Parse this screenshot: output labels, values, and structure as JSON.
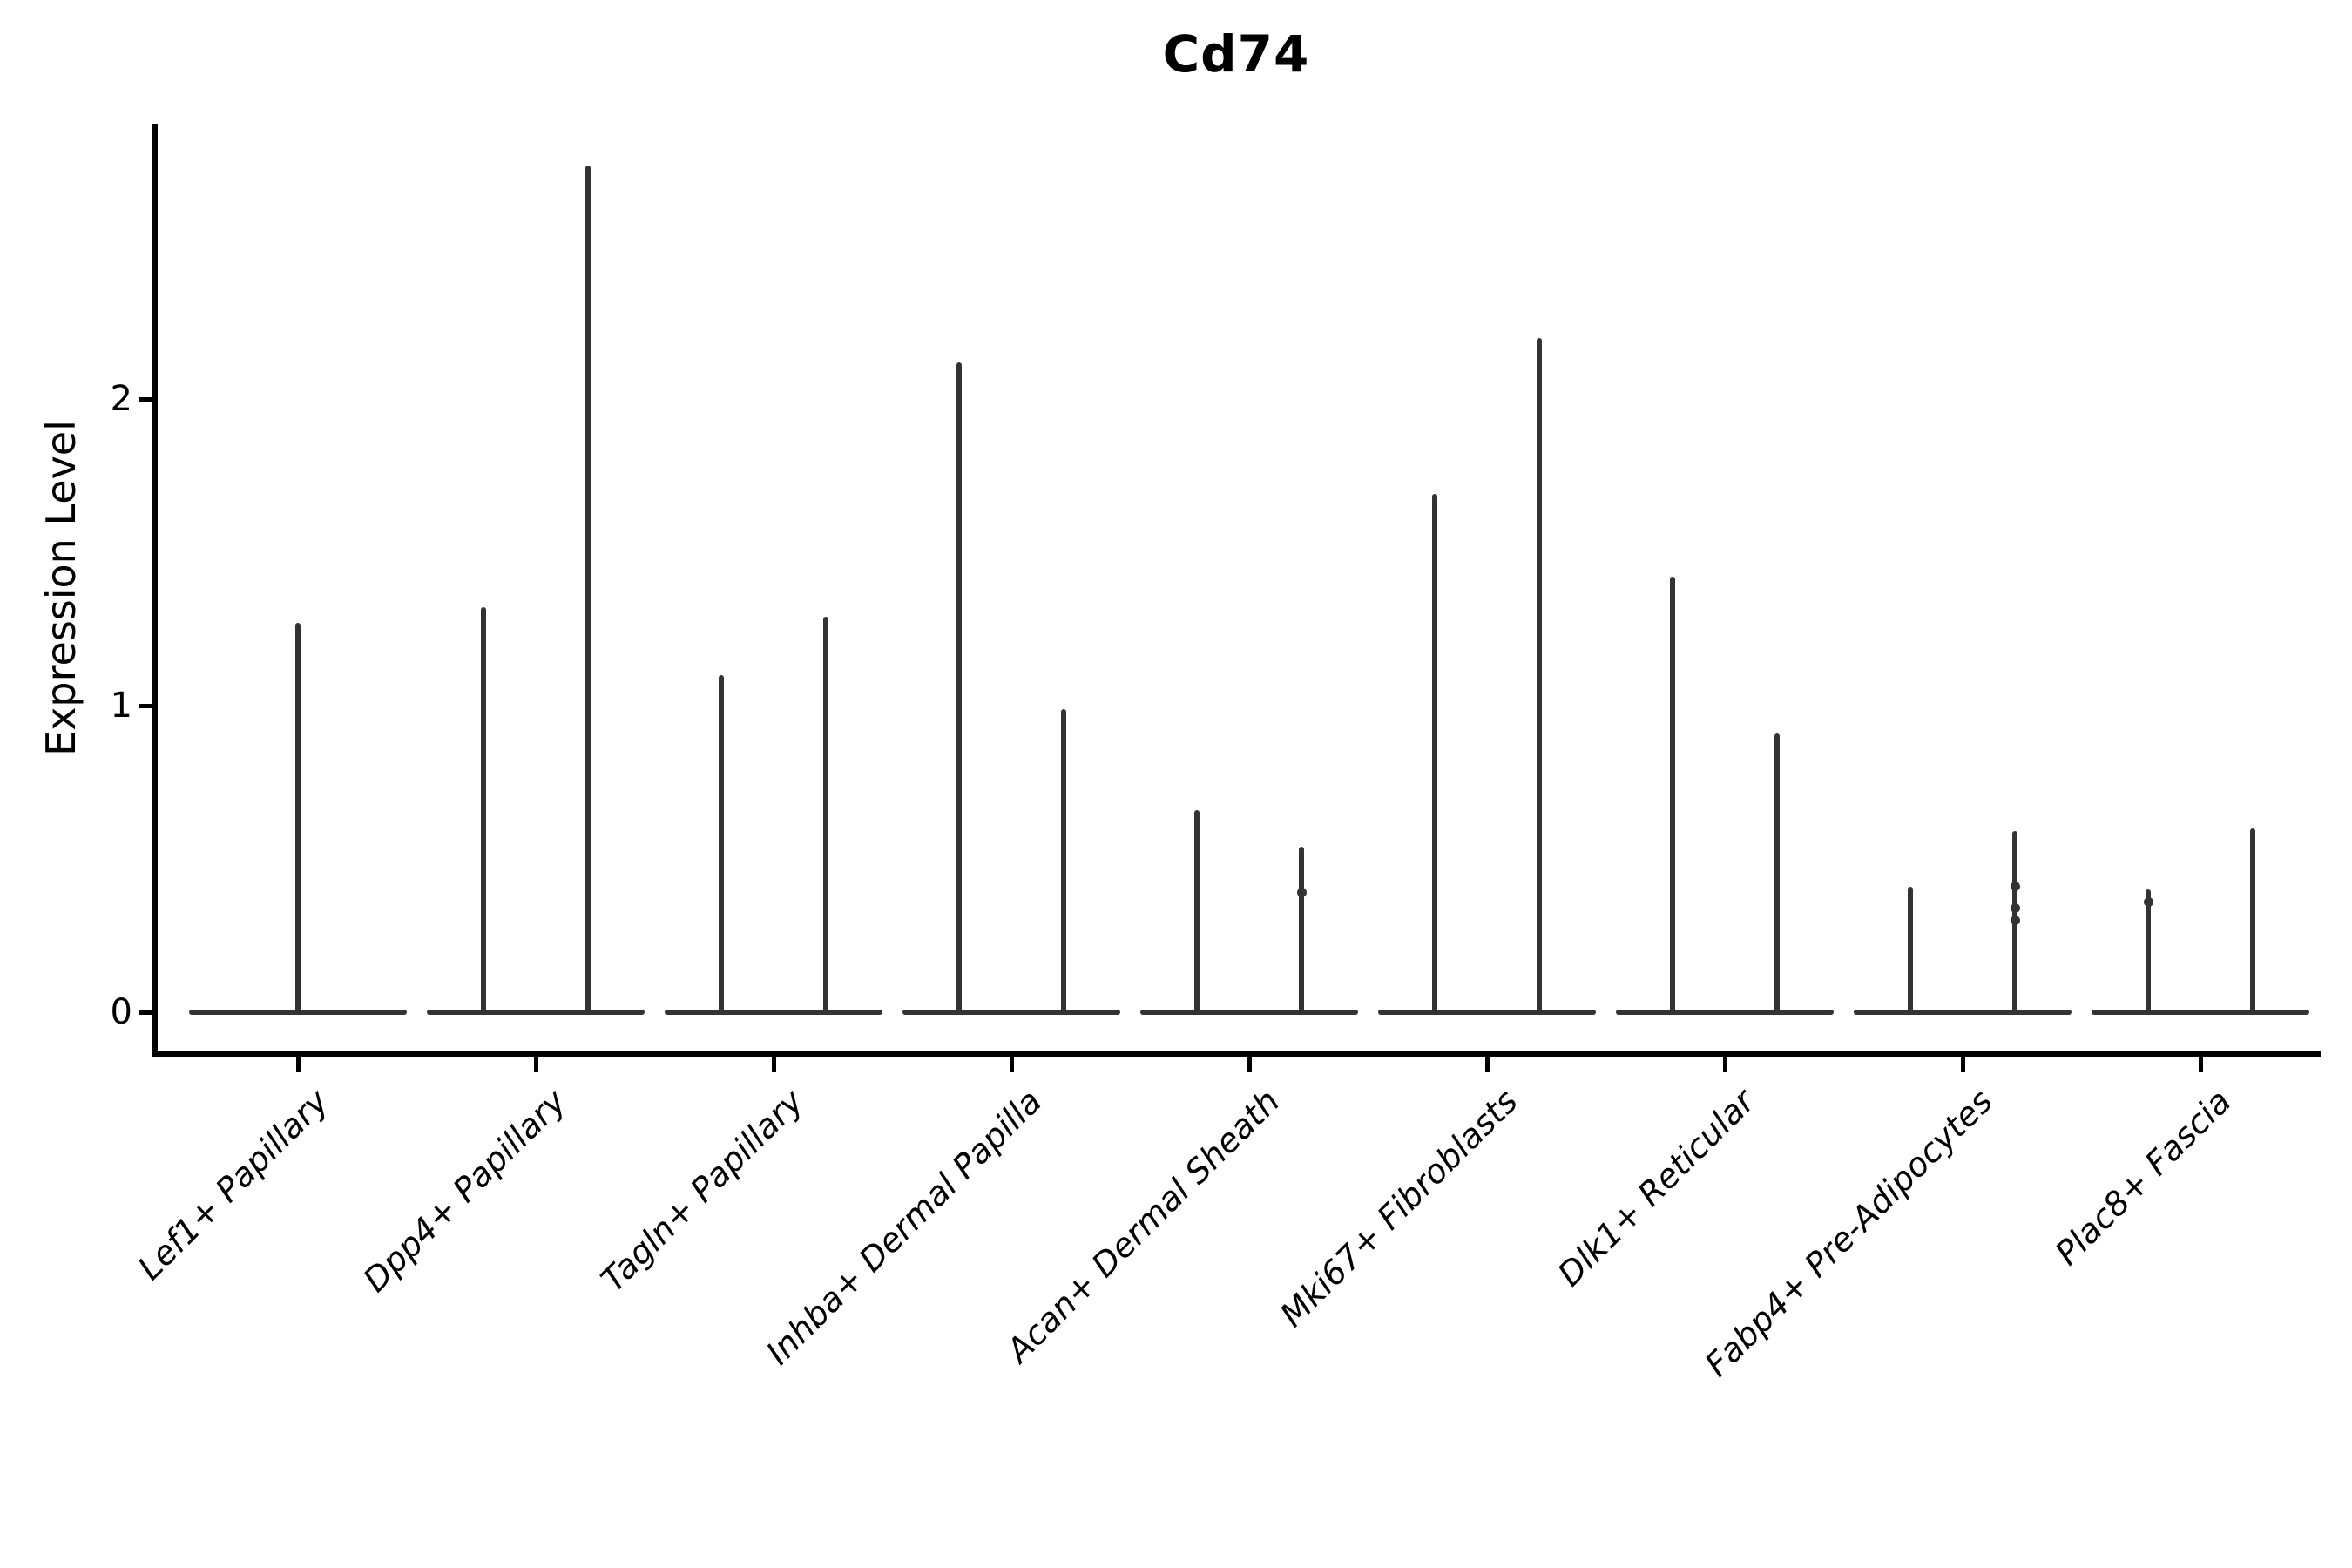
{
  "chart_data": {
    "type": "violin",
    "title": "Cd74",
    "ylabel": "Expression Level",
    "xlabel": "",
    "yticks": [
      0,
      1,
      2
    ],
    "ylim": [
      -0.1,
      2.9
    ],
    "grid": false,
    "legend": "none",
    "violin_color": "#333333",
    "axis_color": "#000000",
    "categories": [
      {
        "label": "Lef1+ Papillary",
        "violins": [
          {
            "position": "center",
            "max": 1.27,
            "dots": []
          }
        ]
      },
      {
        "label": "Dpp4+ Papillary",
        "violins": [
          {
            "position": "left",
            "max": 1.32,
            "dots": []
          },
          {
            "position": "right",
            "max": 2.76,
            "dots": []
          }
        ]
      },
      {
        "label": "Tagln+ Papillary",
        "violins": [
          {
            "position": "left",
            "max": 1.1,
            "dots": []
          },
          {
            "position": "right",
            "max": 1.29,
            "dots": []
          }
        ]
      },
      {
        "label": "Inhba+ Dermal Papilla",
        "violins": [
          {
            "position": "left",
            "max": 2.12,
            "dots": []
          },
          {
            "position": "right",
            "max": 0.99,
            "dots": []
          }
        ]
      },
      {
        "label": "Acan+ Dermal Sheath",
        "violins": [
          {
            "position": "left",
            "max": 0.66,
            "dots": []
          },
          {
            "position": "right",
            "max": 0.54,
            "dots": [
              0.39
            ]
          }
        ]
      },
      {
        "label": "Mki67+ Fibroblasts",
        "violins": [
          {
            "position": "left",
            "max": 1.69,
            "dots": []
          },
          {
            "position": "right",
            "max": 2.2,
            "dots": []
          }
        ]
      },
      {
        "label": "Dlk1+ Reticular",
        "violins": [
          {
            "position": "left",
            "max": 1.42,
            "dots": []
          },
          {
            "position": "right",
            "max": 0.91,
            "dots": []
          }
        ]
      },
      {
        "label": "Fabp4+ Pre-Adipocytes",
        "violins": [
          {
            "position": "left",
            "max": 0.41,
            "dots": []
          },
          {
            "position": "right",
            "max": 0.59,
            "dots": [
              0.41,
              0.34,
              0.3
            ]
          }
        ]
      },
      {
        "label": "Plac8+ Fascia",
        "violins": [
          {
            "position": "left",
            "max": 0.4,
            "dots": [
              0.36
            ]
          },
          {
            "position": "right",
            "max": 0.6,
            "dots": []
          }
        ]
      }
    ]
  }
}
